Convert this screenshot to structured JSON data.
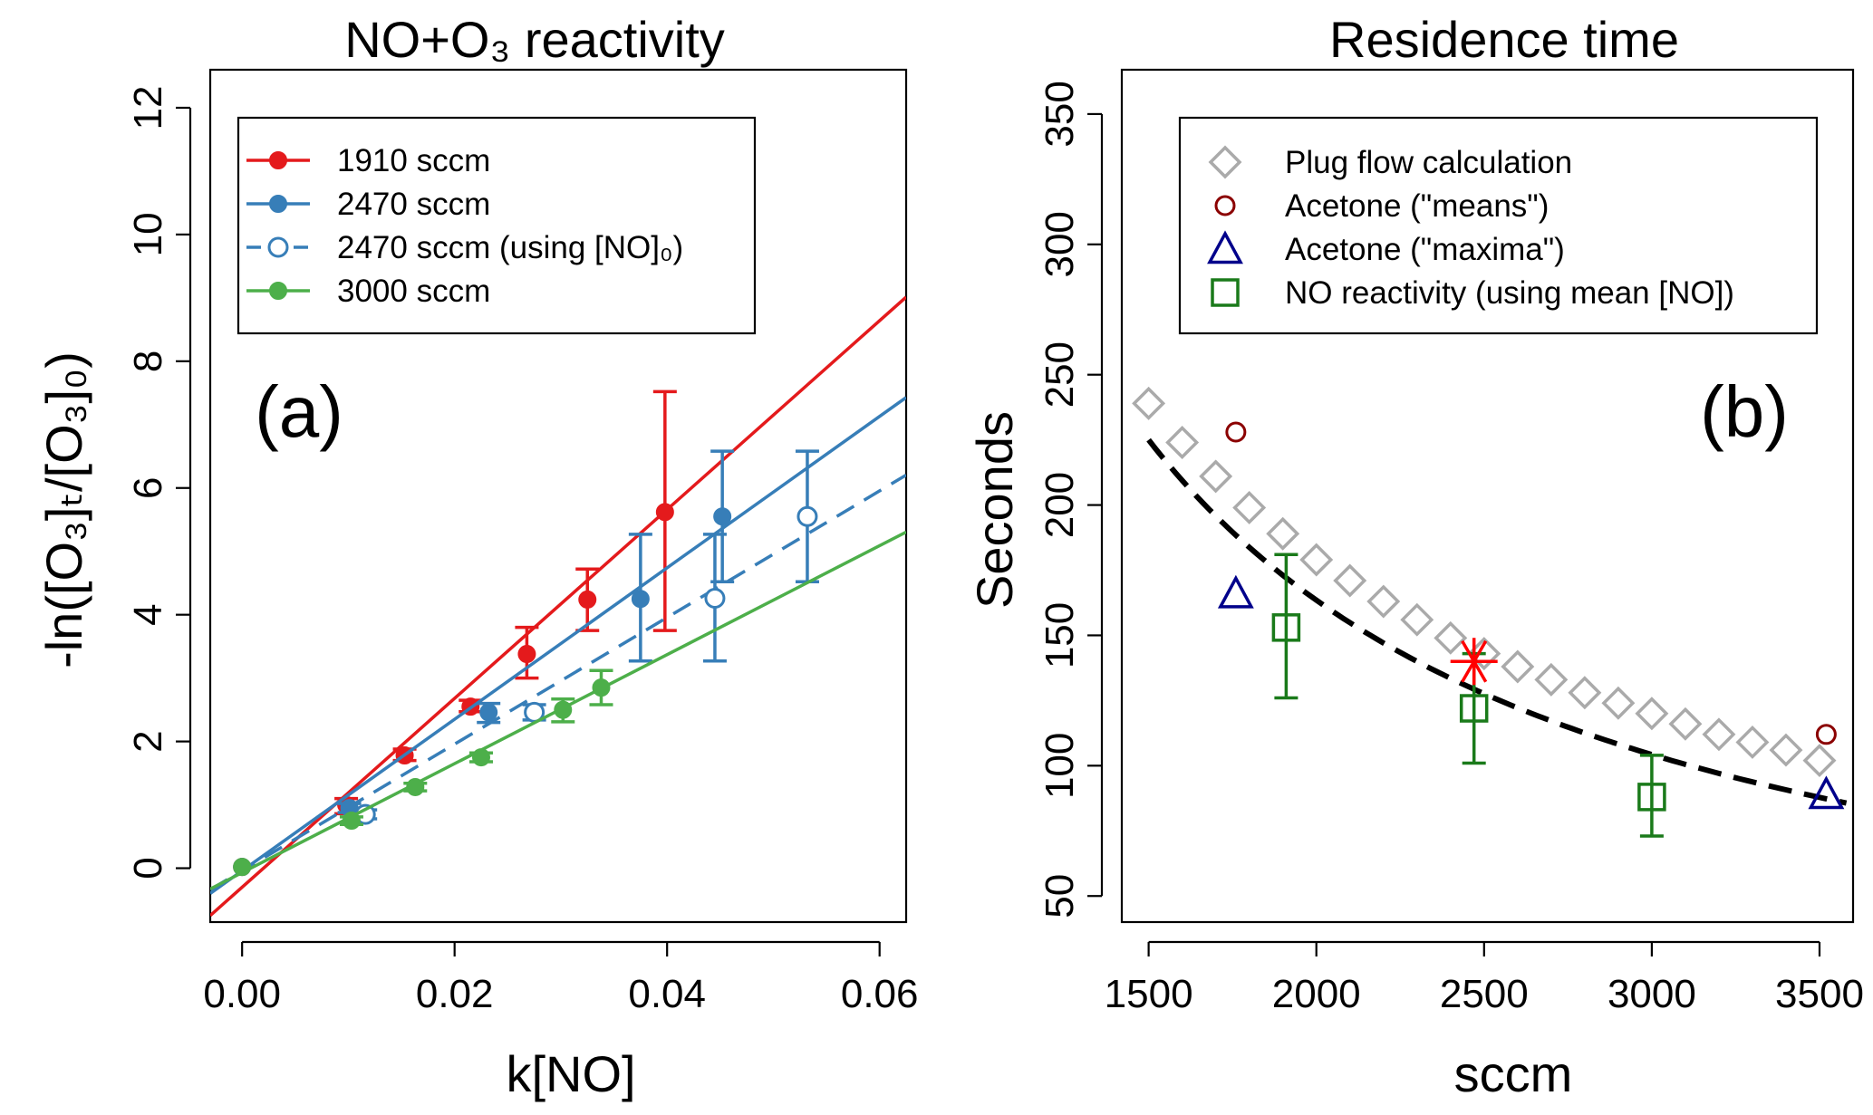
{
  "chart_data": [
    {
      "type": "line",
      "title": "NO+O₃ reactivity",
      "panel_label": "(a)",
      "xlabel": "k[NO]",
      "ylabel": "-ln([O₃]ₜ/[O₃]₀)",
      "xlim": [
        -0.003,
        0.0625
      ],
      "ylim": [
        -0.85,
        12.6
      ],
      "xticks": [
        "0.00",
        "0.02",
        "0.04",
        "0.06"
      ],
      "yticks": [
        "0",
        "2",
        "4",
        "6",
        "8",
        "10",
        "12"
      ],
      "legend_position": "top-left",
      "series": [
        {
          "name": "1910 sccm",
          "color": "#e41a1c",
          "style": "solid",
          "marker": "filled-circle",
          "fit": {
            "slope": 149,
            "intercept": -0.3
          },
          "points": [
            {
              "x": 0.0,
              "y": 0.02
            },
            {
              "x": 0.0098,
              "y": 1.0,
              "lo": 0.86,
              "hi": 1.1
            },
            {
              "x": 0.0153,
              "y": 1.78,
              "lo": 1.7,
              "hi": 1.88
            },
            {
              "x": 0.0215,
              "y": 2.55,
              "lo": 2.47,
              "hi": 2.65
            },
            {
              "x": 0.0268,
              "y": 3.38,
              "lo": 3.0,
              "hi": 3.8
            },
            {
              "x": 0.0325,
              "y": 4.24,
              "lo": 3.75,
              "hi": 4.72
            },
            {
              "x": 0.0398,
              "y": 5.62,
              "lo": 3.75,
              "hi": 7.52
            }
          ]
        },
        {
          "name": "2470 sccm",
          "color": "#377eb8",
          "style": "solid",
          "marker": "filled-circle",
          "fit": {
            "slope": 119.5,
            "intercept": -0.04
          },
          "points": [
            {
              "x": 0.0,
              "y": 0.02
            },
            {
              "x": 0.0101,
              "y": 0.95,
              "lo": 0.88,
              "hi": 1.02
            },
            {
              "x": 0.0232,
              "y": 2.46,
              "lo": 2.3,
              "hi": 2.6
            },
            {
              "x": 0.0375,
              "y": 4.25,
              "lo": 3.27,
              "hi": 5.27
            },
            {
              "x": 0.0452,
              "y": 5.55,
              "lo": 4.52,
              "hi": 6.58
            }
          ]
        },
        {
          "name": "2470 sccm (using [NO]₀)",
          "color": "#377eb8",
          "style": "dashed",
          "marker": "open-circle",
          "fit": {
            "slope": 99.9,
            "intercept": -0.04
          },
          "points": [
            {
              "x": 0.0116,
              "y": 0.85,
              "lo": 0.78,
              "hi": 0.92
            },
            {
              "x": 0.0275,
              "y": 2.46,
              "lo": 2.34,
              "hi": 2.58
            },
            {
              "x": 0.0445,
              "y": 4.26,
              "lo": 3.27,
              "hi": 5.27
            },
            {
              "x": 0.0532,
              "y": 5.55,
              "lo": 4.52,
              "hi": 6.58
            }
          ]
        },
        {
          "name": "3000 sccm",
          "color": "#4daf4a",
          "style": "solid",
          "marker": "filled-circle",
          "fit": {
            "slope": 86,
            "intercept": -0.07
          },
          "points": [
            {
              "x": 0.0,
              "y": 0.02
            },
            {
              "x": 0.0103,
              "y": 0.75,
              "lo": 0.69,
              "hi": 0.81
            },
            {
              "x": 0.0163,
              "y": 1.28,
              "lo": 1.22,
              "hi": 1.34
            },
            {
              "x": 0.0225,
              "y": 1.75,
              "lo": 1.68,
              "hi": 1.82
            },
            {
              "x": 0.0302,
              "y": 2.5,
              "lo": 2.31,
              "hi": 2.67
            },
            {
              "x": 0.0338,
              "y": 2.85,
              "lo": 2.58,
              "hi": 3.12
            }
          ]
        }
      ]
    },
    {
      "type": "scatter",
      "title": "Residence time",
      "panel_label": "(b)",
      "xlabel": "sccm",
      "ylabel": "Seconds",
      "xlim": [
        1420,
        3600
      ],
      "ylim": [
        40,
        367
      ],
      "xticks": [
        "1500",
        "2000",
        "2500",
        "3000",
        "3500"
      ],
      "yticks": [
        "50",
        "100",
        "150",
        "200",
        "250",
        "300",
        "350"
      ],
      "legend_position": "top",
      "series": [
        {
          "name": "Plug flow calculation",
          "color": "#aaaaaa",
          "marker": "open-diamond",
          "x": [
            1500,
            1600,
            1700,
            1800,
            1900,
            2000,
            2100,
            2200,
            2300,
            2400,
            2500,
            2600,
            2700,
            2800,
            2900,
            3000,
            3100,
            3200,
            3300,
            3400,
            3500
          ],
          "y": [
            239,
            224,
            211,
            199,
            189,
            179,
            171,
            163,
            156,
            149,
            143,
            138,
            133,
            128,
            124,
            120,
            116,
            112,
            109,
            106,
            102
          ]
        },
        {
          "name": "Acetone (\"means\")",
          "color": "#8b0000",
          "marker": "open-circle",
          "x": [
            1760,
            3520
          ],
          "y": [
            228,
            112
          ]
        },
        {
          "name": "Acetone (\"maxima\")",
          "color": "#00008b",
          "marker": "open-triangle",
          "x": [
            1760,
            3520
          ],
          "y": [
            166,
            89
          ]
        },
        {
          "name": "NO reactivity (using mean [NO])",
          "color": "#1a7a1a",
          "marker": "open-square",
          "x": [
            1910,
            2470,
            3000
          ],
          "y": [
            153,
            122,
            88
          ],
          "lo": [
            126,
            101,
            73
          ],
          "hi": [
            181,
            143,
            104
          ]
        }
      ],
      "power_fit": {
        "color": "#000000",
        "style": "dashed",
        "x_from": 1500,
        "x_to": 3580,
        "a": 225,
        "b": 1500,
        "exponent": 1.11
      },
      "highlight": {
        "name": "asterisk",
        "color": "#ff0000",
        "x": 2470,
        "y": 140
      }
    }
  ]
}
